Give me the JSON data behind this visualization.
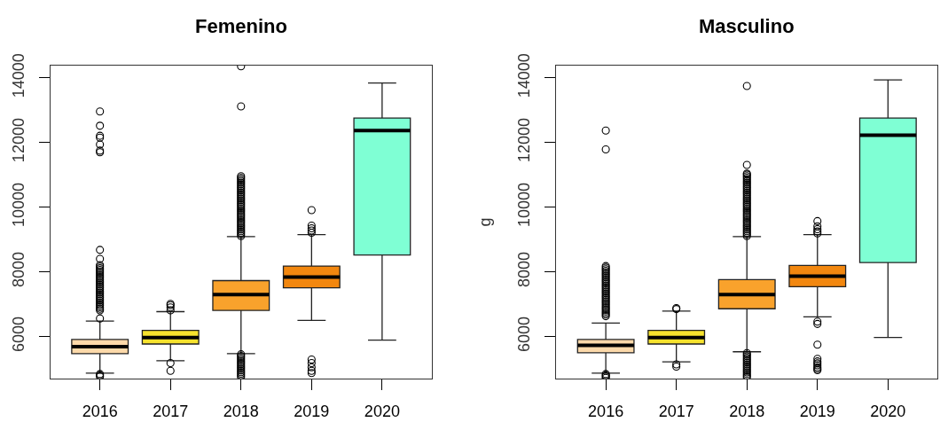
{
  "chart_data": [
    {
      "type": "box",
      "title": "Femenino",
      "categories": [
        "2016",
        "2017",
        "2018",
        "2019",
        "2020"
      ],
      "colors": [
        "#fcd9aa",
        "#f6e22e",
        "#f9a22c",
        "#f2870f",
        "#7fffd4"
      ],
      "ylim": [
        4700,
        14380
      ],
      "yticks": [
        6000,
        8000,
        10000,
        12000,
        14000
      ],
      "boxes": [
        {
          "low": 4870,
          "q1": 5470,
          "median": 5690,
          "q3": 5910,
          "high": 6480,
          "outliers": [
            4760,
            4800,
            4840,
            6560,
            6810,
            6860,
            6910,
            6960,
            7010,
            7060,
            7110,
            7160,
            7210,
            7260,
            7310,
            7360,
            7410,
            7460,
            7510,
            7560,
            7610,
            7660,
            7710,
            7760,
            7810,
            7860,
            7910,
            7960,
            8010,
            8060,
            8110,
            8160,
            8210,
            8400,
            8680,
            11700,
            11750,
            11940,
            12150,
            12210,
            12520,
            12960
          ]
        },
        {
          "low": 5250,
          "q1": 5770,
          "median": 5970,
          "q3": 6190,
          "high": 6770,
          "outliers": [
            4940,
            5180,
            6810,
            6900,
            6970,
            7010
          ]
        },
        {
          "low": 5470,
          "q1": 6810,
          "median": 7300,
          "q3": 7730,
          "high": 9090,
          "outliers": [
            4750,
            4800,
            4850,
            4900,
            4950,
            5000,
            5050,
            5100,
            5150,
            5200,
            5250,
            5300,
            5350,
            5400,
            5450,
            9110,
            9160,
            9210,
            9260,
            9310,
            9360,
            9410,
            9460,
            9510,
            9560,
            9610,
            9660,
            9710,
            9760,
            9810,
            9860,
            9910,
            9960,
            10010,
            10060,
            10110,
            10160,
            10210,
            10260,
            10310,
            10360,
            10410,
            10460,
            10510,
            10560,
            10610,
            10660,
            10710,
            10760,
            10810,
            10860,
            10910,
            10960,
            13120,
            14360
          ]
        },
        {
          "low": 6500,
          "q1": 7510,
          "median": 7840,
          "q3": 8180,
          "high": 9150,
          "outliers": [
            4870,
            4940,
            5050,
            5180,
            5290,
            9210,
            9280,
            9350,
            9430,
            9910
          ]
        },
        {
          "low": 5890,
          "q1": 8520,
          "median": 12370,
          "q3": 12760,
          "high": 13840
        }
      ]
    },
    {
      "type": "box",
      "title": "Masculino",
      "ylabel": "g",
      "categories": [
        "2016",
        "2017",
        "2018",
        "2019",
        "2020"
      ],
      "colors": [
        "#fcd9aa",
        "#f6e22e",
        "#f9a22c",
        "#f2870f",
        "#7fffd4"
      ],
      "ylim": [
        4700,
        14380
      ],
      "yticks": [
        6000,
        8000,
        10000,
        12000,
        14000
      ],
      "boxes": [
        {
          "low": 4870,
          "q1": 5500,
          "median": 5730,
          "q3": 5910,
          "high": 6420,
          "outliers": [
            4720,
            4760,
            4800,
            4840,
            6630,
            6680,
            6730,
            6780,
            6830,
            6880,
            6930,
            6980,
            7030,
            7080,
            7130,
            7180,
            7230,
            7280,
            7330,
            7380,
            7430,
            7480,
            7530,
            7580,
            7630,
            7680,
            7730,
            7780,
            7830,
            7880,
            7930,
            7980,
            8030,
            8080,
            8130,
            8180,
            11790,
            12370
          ]
        },
        {
          "low": 5220,
          "q1": 5770,
          "median": 5970,
          "q3": 6190,
          "high": 6790,
          "outliers": [
            5070,
            5140,
            6850,
            6880
          ]
        },
        {
          "low": 5530,
          "q1": 6860,
          "median": 7300,
          "q3": 7760,
          "high": 9090,
          "outliers": [
            4740,
            4790,
            4840,
            4890,
            4940,
            4990,
            5040,
            5090,
            5140,
            5190,
            5240,
            5290,
            5340,
            5390,
            5440,
            5490,
            9110,
            9160,
            9210,
            9260,
            9310,
            9360,
            9410,
            9460,
            9510,
            9560,
            9610,
            9660,
            9710,
            9760,
            9810,
            9860,
            9910,
            9960,
            10010,
            10060,
            10110,
            10160,
            10210,
            10260,
            10310,
            10360,
            10410,
            10460,
            10510,
            10560,
            10610,
            10660,
            10710,
            10760,
            10810,
            10860,
            10910,
            10960,
            11010,
            11040,
            11310,
            13750
          ]
        },
        {
          "low": 6610,
          "q1": 7540,
          "median": 7870,
          "q3": 8200,
          "high": 9150,
          "outliers": [
            4960,
            5000,
            5050,
            5110,
            5170,
            5230,
            5310,
            5750,
            6390,
            6460,
            9190,
            9250,
            9320,
            9410,
            9570
          ]
        },
        {
          "low": 5970,
          "q1": 8290,
          "median": 12230,
          "q3": 12760,
          "high": 13940
        }
      ]
    }
  ]
}
